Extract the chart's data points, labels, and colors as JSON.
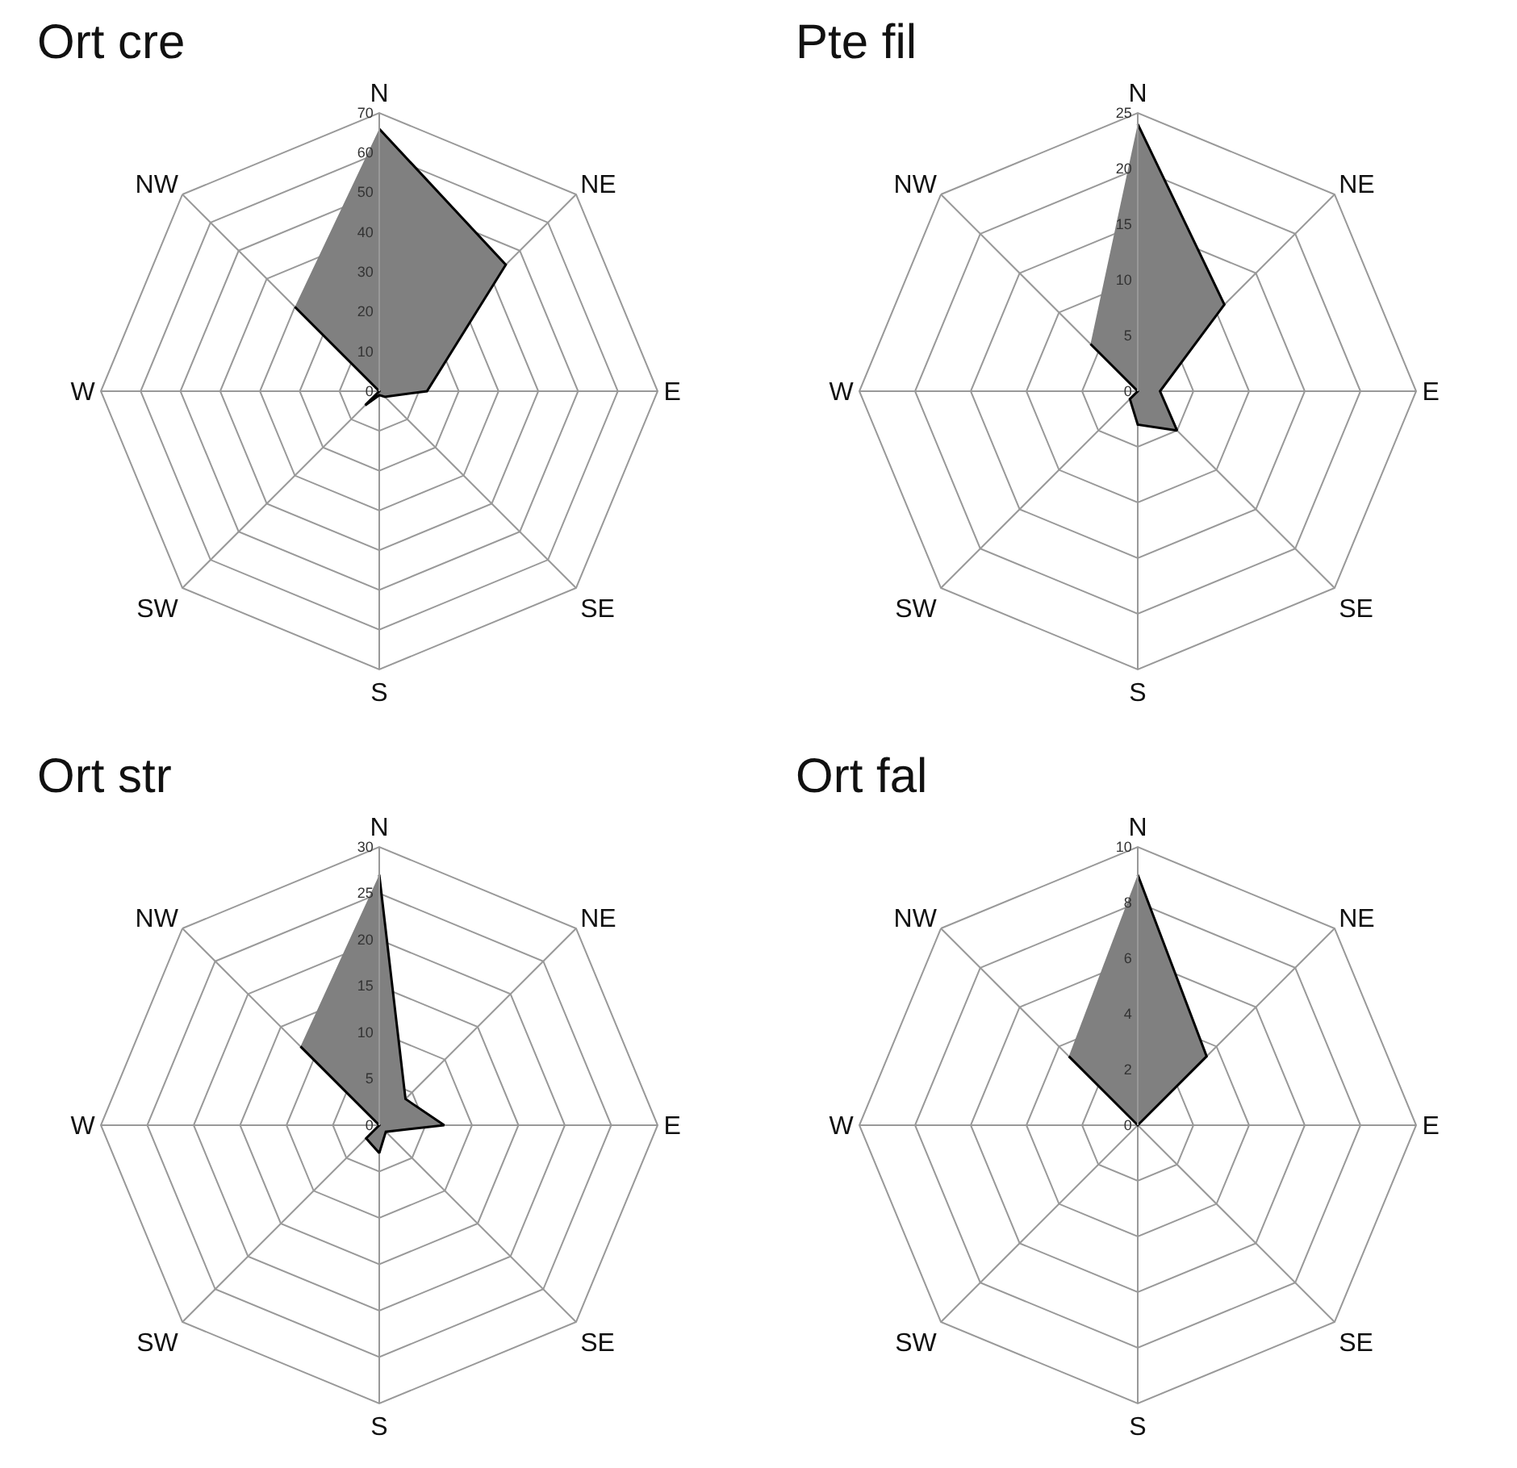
{
  "chart_data": [
    {
      "type": "radar",
      "title": "Ort cre",
      "categories": [
        "N",
        "NE",
        "E",
        "SE",
        "S",
        "SW",
        "W",
        "NW"
      ],
      "series": [
        {
          "color": "#808080",
          "values": [
            66,
            45,
            12,
            2,
            1,
            5,
            0,
            30
          ]
        }
      ],
      "ylim": [
        0,
        70
      ],
      "yticks": [
        0,
        10,
        20,
        30,
        40,
        50,
        60,
        70
      ],
      "grid": true
    },
    {
      "type": "radar",
      "title": "Pte fil",
      "categories": [
        "N",
        "NE",
        "E",
        "SE",
        "S",
        "SW",
        "W",
        "NW"
      ],
      "series": [
        {
          "color": "#808080",
          "values": [
            24,
            11,
            2,
            5,
            3,
            1,
            0,
            6
          ]
        }
      ],
      "ylim": [
        0,
        25
      ],
      "yticks": [
        0,
        5,
        10,
        15,
        20,
        25
      ],
      "grid": true
    },
    {
      "type": "radar",
      "title": "Ort str",
      "categories": [
        "N",
        "NE",
        "E",
        "SE",
        "S",
        "SW",
        "W",
        "NW"
      ],
      "series": [
        {
          "color": "#808080",
          "values": [
            27,
            4,
            7,
            1,
            3,
            2,
            0,
            12
          ]
        }
      ],
      "ylim": [
        0,
        30
      ],
      "yticks": [
        0,
        5,
        10,
        15,
        20,
        25,
        30
      ],
      "grid": true
    },
    {
      "type": "radar",
      "title": "Ort fal",
      "categories": [
        "N",
        "NE",
        "E",
        "SE",
        "S",
        "SW",
        "W",
        "NW"
      ],
      "series": [
        {
          "color": "#808080",
          "values": [
            9,
            3.5,
            0,
            0,
            0,
            0,
            0,
            3.5
          ]
        }
      ],
      "ylim": [
        0,
        10
      ],
      "yticks": [
        0,
        2,
        4,
        6,
        8,
        10
      ],
      "grid": true
    }
  ]
}
